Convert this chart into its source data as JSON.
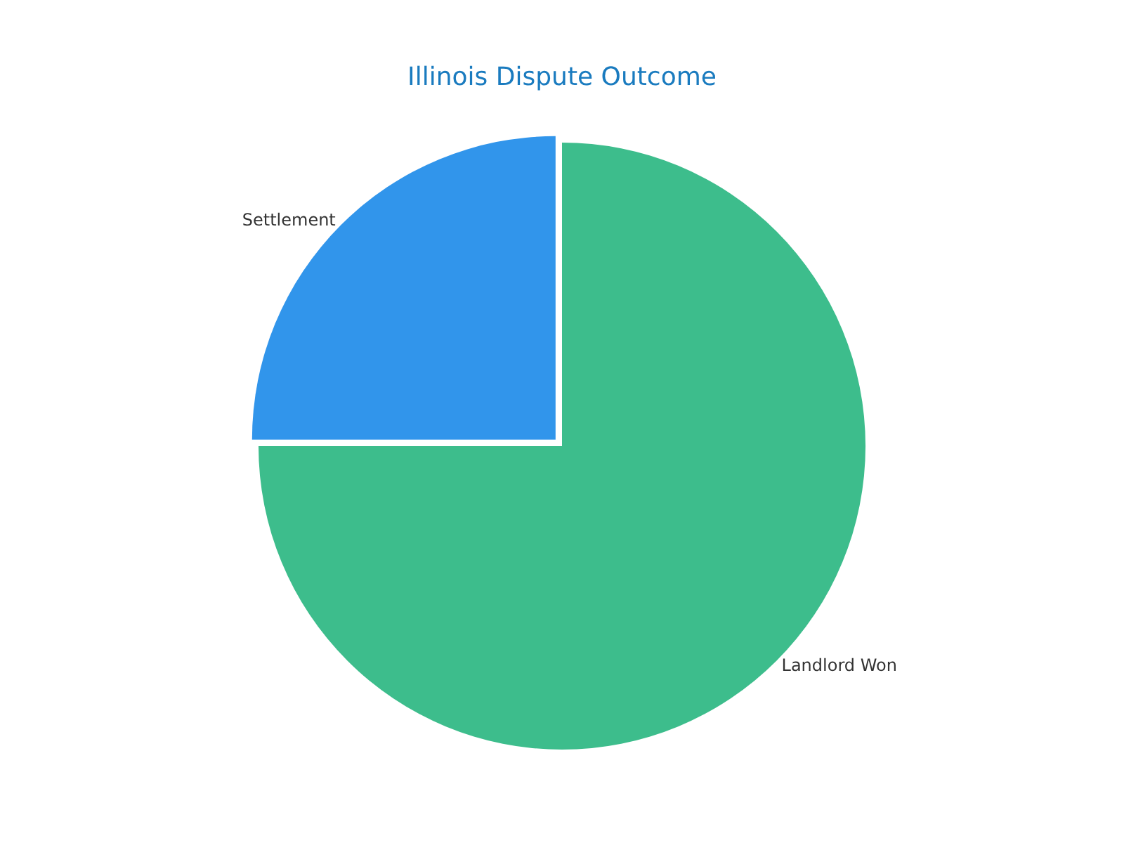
{
  "chart_data": {
    "type": "pie",
    "title": "Illinois Dispute Outcome",
    "categories": [
      "Landlord Won",
      "Settlement"
    ],
    "values": [
      75,
      25
    ],
    "colors": [
      "#3dbd8c",
      "#3195eb"
    ],
    "legend": false
  }
}
